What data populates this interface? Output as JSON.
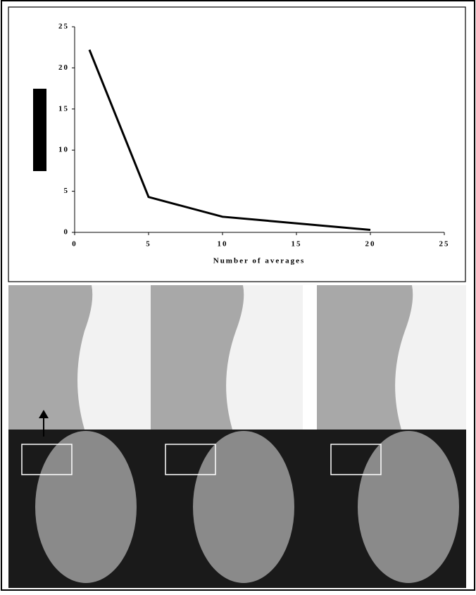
{
  "chart_data": {
    "type": "line",
    "x_label": "Number of averages",
    "x": [
      1,
      5,
      10,
      20
    ],
    "series": [
      {
        "color": "#000000",
        "values": [
          22.2,
          4.3,
          1.9,
          0.3
        ]
      }
    ],
    "xlim": [
      0,
      25
    ],
    "xticks": [
      0,
      5,
      10,
      15,
      20,
      25
    ],
    "ylim": [
      0,
      25
    ],
    "yticks": [
      0,
      5,
      10,
      15,
      20,
      25
    ],
    "grid": false
  }
}
